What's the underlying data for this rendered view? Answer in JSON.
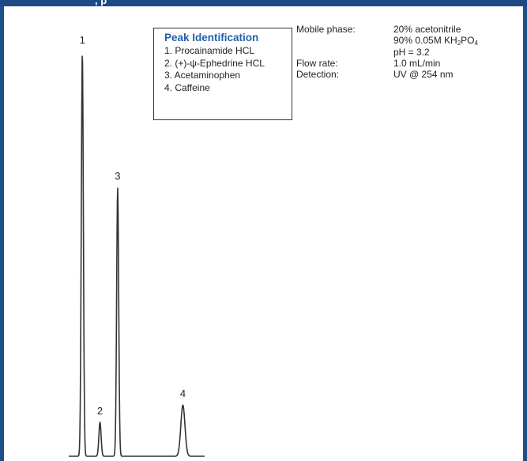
{
  "header": {
    "title_fragment": ", p"
  },
  "legend": {
    "title": "Peak Identification",
    "items": [
      "1. Procainamide HCL",
      "2. (+)-ψ-Ephedrine HCL",
      "3. Acetaminophen",
      "4. Caffeine"
    ]
  },
  "conditions": {
    "mobile_phase_label": "Mobile phase:",
    "mobile_phase_line1": "20% acetonitrile",
    "mobile_phase_line2_pre": "90% 0.05M KH",
    "mobile_phase_line2_sub1": "2",
    "mobile_phase_line2_mid": "PO",
    "mobile_phase_line2_sub2": "4",
    "mobile_phase_line3": "pH = 3.2",
    "flow_rate_label": "Flow rate:",
    "flow_rate_value": "1.0 mL/min",
    "detection_label": "Detection:",
    "detection_value": "UV @ 254 nm"
  },
  "chart_data": {
    "type": "line",
    "title": "",
    "xlabel": "",
    "ylabel": "",
    "grid": false,
    "peaks": [
      {
        "label": "1",
        "name": "Procainamide HCL",
        "position": 0.1,
        "height": 0.95
      },
      {
        "label": "2",
        "name": "(+)-ψ-Ephedrine HCL",
        "position": 0.23,
        "height": 0.08
      },
      {
        "label": "3",
        "name": "Acetaminophen",
        "position": 0.36,
        "height": 0.63
      },
      {
        "label": "4",
        "name": "Caffeine",
        "position": 0.84,
        "height": 0.12
      }
    ]
  },
  "colors": {
    "frame": "#1f4e8c",
    "legend_title": "#2460a7",
    "trace": "#333333"
  }
}
